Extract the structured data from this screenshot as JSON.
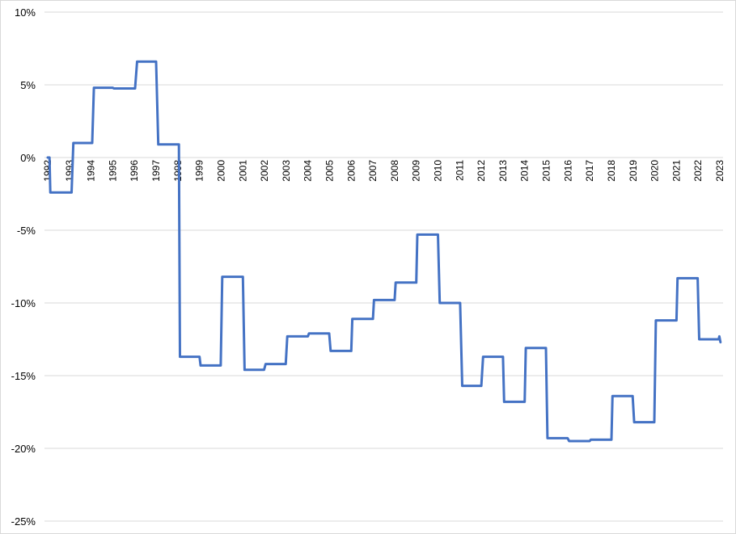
{
  "chart_data": {
    "type": "line",
    "title": "",
    "xlabel": "",
    "ylabel": "",
    "ylim": [
      -25,
      10
    ],
    "y_tick_values": [
      10,
      5,
      0,
      -5,
      -10,
      -15,
      -20,
      -25
    ],
    "y_tick_labels": [
      "10%",
      "5%",
      "0%",
      "-5%",
      "-10%",
      "-15%",
      "-20%",
      "-25%"
    ],
    "x_tick_labels": [
      "1992",
      "1993",
      "1994",
      "1995",
      "1996",
      "1997",
      "1998",
      "1999",
      "2000",
      "2001",
      "2002",
      "2003",
      "2004",
      "2005",
      "2006",
      "2007",
      "2008",
      "2009",
      "2010",
      "2011",
      "2012",
      "2013",
      "2014",
      "2015",
      "2016",
      "2017",
      "2018",
      "2019",
      "2020",
      "2021",
      "2022",
      "2023"
    ],
    "x_tick_positions": [
      1992.0,
      1993.0,
      1994.0,
      1995.0,
      1996.0,
      1997.0,
      1998.0,
      1999.0,
      2000.0,
      2001.0,
      2002.0,
      2003.0,
      2004.0,
      2005.0,
      2006.0,
      2007.0,
      2008.0,
      2009.0,
      2010.0,
      2011.0,
      2012.0,
      2013.0,
      2014.0,
      2015.0,
      2016.0,
      2017.0,
      2018.0,
      2019.0,
      2020.0,
      2021.0,
      2022.0,
      2023.0
    ],
    "x_range": [
      1991.85,
      2023.15
    ],
    "grid": true,
    "legend": "none",
    "series": [
      {
        "color": "#4472c4",
        "x": [
          1992.0,
          1992.08,
          1992.12,
          1992.2,
          1993.1,
          1993.18,
          1994.05,
          1994.13,
          1995.0,
          1995.05,
          1996.03,
          1996.12,
          1997.0,
          1997.1,
          1998.05,
          1998.1,
          1999.0,
          1999.05,
          1999.98,
          2000.05,
          2001.0,
          2001.08,
          2001.98,
          2002.05,
          2002.98,
          2003.05,
          2004.0,
          2004.05,
          2004.98,
          2005.05,
          2006.0,
          2006.05,
          2007.0,
          2007.05,
          2008.0,
          2008.05,
          2009.0,
          2009.05,
          2010.0,
          2010.08,
          2011.02,
          2011.12,
          2012.0,
          2012.08,
          2013.0,
          2013.05,
          2014.0,
          2014.05,
          2014.98,
          2015.05,
          2015.98,
          2016.05,
          2017.0,
          2017.05,
          2018.0,
          2018.05,
          2018.98,
          2019.05,
          2019.98,
          2020.05,
          2021.0,
          2021.05,
          2021.98,
          2022.05,
          2022.95,
          2022.98,
          2023.03
        ],
        "values": [
          0.0,
          0.0,
          -2.4,
          -2.4,
          -2.4,
          1.0,
          1.0,
          4.8,
          4.8,
          4.75,
          4.75,
          6.6,
          6.6,
          0.9,
          0.9,
          -13.7,
          -13.7,
          -14.3,
          -14.3,
          -8.2,
          -8.2,
          -14.6,
          -14.6,
          -14.2,
          -14.2,
          -12.3,
          -12.3,
          -12.1,
          -12.1,
          -13.3,
          -13.3,
          -11.1,
          -11.1,
          -9.8,
          -9.8,
          -8.6,
          -8.6,
          -5.3,
          -5.3,
          -10.0,
          -10.0,
          -15.7,
          -15.7,
          -13.7,
          -13.7,
          -16.8,
          -16.8,
          -13.1,
          -13.1,
          -19.3,
          -19.3,
          -19.5,
          -19.5,
          -19.4,
          -19.4,
          -16.4,
          -16.4,
          -18.2,
          -18.2,
          -11.2,
          -11.2,
          -8.3,
          -8.3,
          -12.5,
          -12.5,
          -12.3,
          -12.7
        ]
      }
    ]
  }
}
